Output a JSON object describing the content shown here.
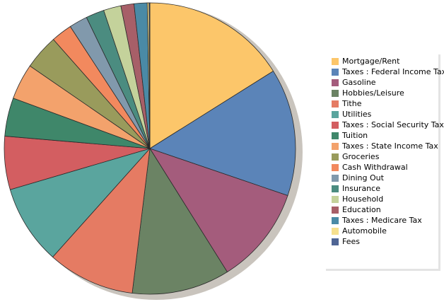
{
  "chart_data": {
    "type": "pie",
    "title": "",
    "legend_position": "right",
    "slices": [
      {
        "label": "Mortgage/Rent",
        "value": 16.6,
        "color": "#fcc66a"
      },
      {
        "label": "Taxes : Federal Income Tax",
        "value": 14.6,
        "color": "#5b84b8"
      },
      {
        "label": "Gasoline",
        "value": 11.2,
        "color": "#a45c7c"
      },
      {
        "label": "Hobbies/Leisure",
        "value": 11.2,
        "color": "#6b8364"
      },
      {
        "label": "Tithe",
        "value": 10.0,
        "color": "#e57b63"
      },
      {
        "label": "Utilities",
        "value": 9.1,
        "color": "#5aa59e"
      },
      {
        "label": "Taxes : Social Security Tax",
        "value": 6.1,
        "color": "#d35e61"
      },
      {
        "label": "Tuition",
        "value": 4.4,
        "color": "#3f876a"
      },
      {
        "label": "Taxes : State Income Tax",
        "value": 4.1,
        "color": "#f3a26c"
      },
      {
        "label": "Groceries",
        "value": 4.0,
        "color": "#999b5c"
      },
      {
        "label": "Cash Withdrawal",
        "value": 2.4,
        "color": "#f2895e"
      },
      {
        "label": "Dining Out",
        "value": 2.1,
        "color": "#8199ac"
      },
      {
        "label": "Insurance",
        "value": 2.1,
        "color": "#4b8c80"
      },
      {
        "label": "Household",
        "value": 2.0,
        "color": "#c4d29b"
      },
      {
        "label": "Education",
        "value": 1.5,
        "color": "#a75f68"
      },
      {
        "label": "Taxes : Medicare Tax",
        "value": 1.5,
        "color": "#4a8aa6"
      },
      {
        "label": "Automobile",
        "value": 0.2,
        "color": "#f6e08e"
      },
      {
        "label": "Fees",
        "value": 0.1,
        "color": "#4f6594"
      }
    ]
  }
}
